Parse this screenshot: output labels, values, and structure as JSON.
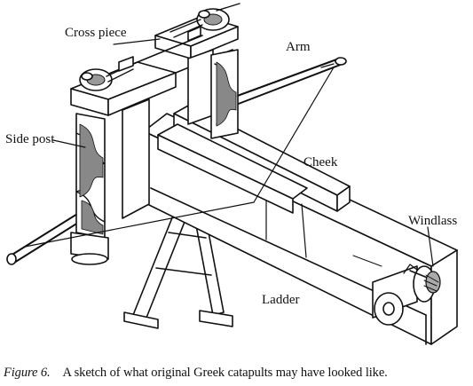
{
  "labels": {
    "cross_piece": "Cross piece",
    "arm": "Arm",
    "side_post": "Side post",
    "cheek": "Cheek",
    "windlass": "Windlass",
    "ladder": "Ladder"
  },
  "caption": {
    "figure_number": "Figure 6.",
    "text": "A sketch of what original Greek catapults may have looked like."
  }
}
